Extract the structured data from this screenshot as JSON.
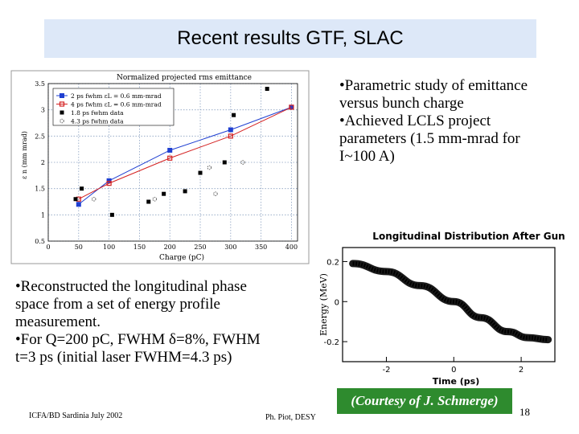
{
  "header": {
    "title": "Recent results GTF, SLAC"
  },
  "left_text": {
    "lines": [
      "•Reconstructed the longitudinal phase",
      "space from a set of energy profile",
      "measurement.",
      "•For Q=200 pC, FWHM δ=8%, FWHM",
      "t=3 ps (initial laser FWHM=4.3 ps)"
    ]
  },
  "right_text": {
    "lines": [
      "•Parametric study of emittance",
      "versus bunch charge",
      "•Achieved LCLS project",
      "parameters (1.5 mm-mrad for",
      "I~100 A)"
    ]
  },
  "footer": {
    "left": "ICFA/BD Sardinia July 2002",
    "center": "Ph. Piot, DESY",
    "page": "18"
  },
  "courtesy": "(Courtesy of J. Schmerge)",
  "chart_data": [
    {
      "type": "scatter",
      "title": "Normalized projected rms emittance",
      "xlabel": "Charge (pC)",
      "ylabel": "ε n (mm mrad)",
      "xlim": [
        0,
        410
      ],
      "ylim": [
        0.5,
        3.5
      ],
      "xticks": [
        "0",
        "50",
        "100",
        "150",
        "200",
        "250",
        "300",
        "350",
        "400"
      ],
      "yticks": [
        "0.5",
        "1",
        "1.5",
        "2",
        "2.5",
        "3",
        "3.5"
      ],
      "grid": true,
      "legend_position": "top-left",
      "series": [
        {
          "name": "2 ps fwhm εL = 0.6 mm-mrad",
          "mode": "line",
          "color": "#1f3fd1",
          "marker": "square",
          "x": [
            50,
            100,
            200,
            300,
            400
          ],
          "y": [
            1.2,
            1.65,
            2.23,
            2.62,
            3.05
          ]
        },
        {
          "name": "4 ps fwhm εL = 0.6 mm-mrad",
          "mode": "line",
          "color": "#d42020",
          "marker": "diamond",
          "x": [
            50,
            100,
            200,
            300,
            400
          ],
          "y": [
            1.3,
            1.6,
            2.08,
            2.5,
            3.05
          ]
        },
        {
          "name": "1.8 ps fwhm data",
          "mode": "points",
          "color": "#000000",
          "marker": "filled-square",
          "x": [
            45,
            55,
            105,
            165,
            190,
            225,
            250,
            290,
            305,
            360
          ],
          "y": [
            1.3,
            1.5,
            1.0,
            1.25,
            1.4,
            1.45,
            1.8,
            2.0,
            2.9,
            3.4
          ]
        },
        {
          "name": "4.3 ps fwhm data",
          "mode": "points",
          "color": "#555555",
          "marker": "open-circle",
          "x": [
            75,
            175,
            265,
            275,
            320
          ],
          "y": [
            1.3,
            1.3,
            1.9,
            1.4,
            2.0
          ]
        }
      ]
    },
    {
      "type": "line",
      "title": "Longitudinal Distribution After Gun",
      "xlabel": "Time (ps)",
      "ylabel": "Energy (MeV)",
      "xlim": [
        -3.3,
        3.0
      ],
      "ylim": [
        -0.3,
        0.27
      ],
      "xticks": [
        "-2",
        "0",
        "2"
      ],
      "yticks": [
        "0.2",
        "0",
        "-0.2"
      ],
      "series": [
        {
          "name": "",
          "color": "#000000",
          "x": [
            -3.0,
            -2.0,
            -1.0,
            0.0,
            0.8,
            1.6,
            2.2,
            2.8
          ],
          "y": [
            0.19,
            0.15,
            0.08,
            0.0,
            -0.08,
            -0.15,
            -0.18,
            -0.19
          ]
        }
      ]
    }
  ]
}
